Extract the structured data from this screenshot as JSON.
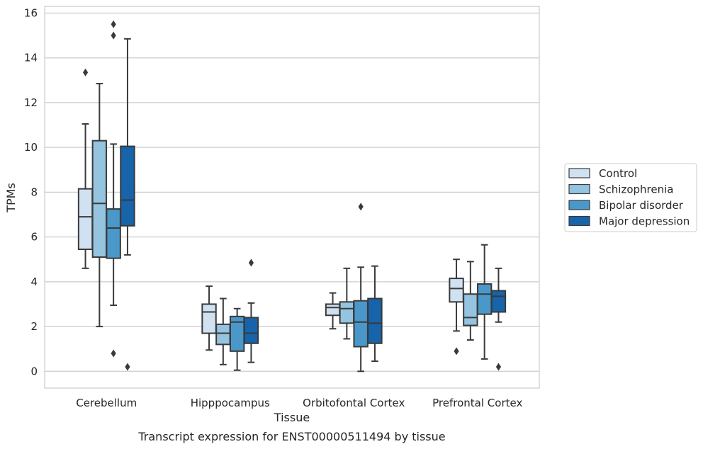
{
  "chart_data": {
    "type": "boxplot",
    "xlabel": "Tissue",
    "ylabel": "TPMs",
    "caption": "Transcript expression for ENST00000511494 by tissue",
    "ylim": [
      -0.75,
      16.3
    ],
    "yticks": [
      0,
      2,
      4,
      6,
      8,
      10,
      12,
      14,
      16
    ],
    "grid": "horizontal",
    "legend_position": "right",
    "categories": [
      "Cerebellum",
      "Hipppocampus",
      "Orbitofontal Cortex",
      "Prefrontal Cortex"
    ],
    "series": [
      {
        "name": "Control",
        "color": "#d0e1f2",
        "boxes": [
          {
            "whislo": 4.6,
            "q1": 5.45,
            "median": 6.9,
            "q3": 8.15,
            "whishi": 11.05,
            "fliers": [
              13.35
            ]
          },
          {
            "whislo": 0.95,
            "q1": 1.7,
            "median": 2.65,
            "q3": 3.0,
            "whishi": 3.8,
            "fliers": []
          },
          {
            "whislo": 1.9,
            "q1": 2.5,
            "median": 2.85,
            "q3": 3.0,
            "whishi": 3.5,
            "fliers": []
          },
          {
            "whislo": 1.8,
            "q1": 3.1,
            "median": 3.7,
            "q3": 4.15,
            "whishi": 5.0,
            "fliers": [
              0.9
            ]
          }
        ]
      },
      {
        "name": "Schizophrenia",
        "color": "#94c4df",
        "boxes": [
          {
            "whislo": 2.0,
            "q1": 5.1,
            "median": 7.5,
            "q3": 10.3,
            "whishi": 12.85,
            "fliers": []
          },
          {
            "whislo": 0.3,
            "q1": 1.2,
            "median": 1.7,
            "q3": 2.1,
            "whishi": 3.25,
            "fliers": []
          },
          {
            "whislo": 1.45,
            "q1": 2.15,
            "median": 2.8,
            "q3": 3.1,
            "whishi": 4.6,
            "fliers": []
          },
          {
            "whislo": 1.4,
            "q1": 2.05,
            "median": 2.4,
            "q3": 3.45,
            "whishi": 4.9,
            "fliers": []
          }
        ]
      },
      {
        "name": "Bipolar disorder",
        "color": "#4a98c9",
        "boxes": [
          {
            "whislo": 2.95,
            "q1": 5.05,
            "median": 6.4,
            "q3": 7.25,
            "whishi": 10.15,
            "fliers": [
              0.8,
              15.0,
              15.5
            ]
          },
          {
            "whislo": 0.05,
            "q1": 0.9,
            "median": 2.2,
            "q3": 2.45,
            "whishi": 2.8,
            "fliers": []
          },
          {
            "whislo": 0.0,
            "q1": 1.1,
            "median": 2.2,
            "q3": 3.15,
            "whishi": 4.65,
            "fliers": [
              7.35
            ]
          },
          {
            "whislo": 0.55,
            "q1": 2.55,
            "median": 3.45,
            "q3": 3.9,
            "whishi": 5.65,
            "fliers": []
          }
        ]
      },
      {
        "name": "Major depression",
        "color": "#1764ab",
        "boxes": [
          {
            "whislo": 5.2,
            "q1": 6.5,
            "median": 7.65,
            "q3": 10.05,
            "whishi": 14.85,
            "fliers": [
              0.2
            ]
          },
          {
            "whislo": 0.4,
            "q1": 1.25,
            "median": 1.7,
            "q3": 2.4,
            "whishi": 3.05,
            "fliers": [
              4.85
            ]
          },
          {
            "whislo": 0.45,
            "q1": 1.25,
            "median": 2.15,
            "q3": 3.25,
            "whishi": 4.7,
            "fliers": []
          },
          {
            "whislo": 2.2,
            "q1": 2.65,
            "median": 3.35,
            "q3": 3.6,
            "whishi": 4.6,
            "fliers": [
              0.2
            ]
          }
        ]
      }
    ]
  }
}
